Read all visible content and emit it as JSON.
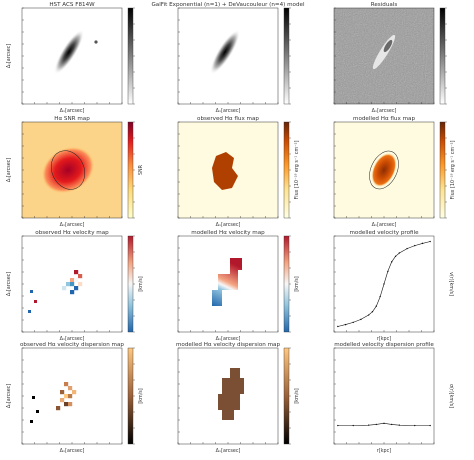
{
  "figure": {
    "panels": [
      {
        "id": "hst",
        "title": "HST ACS F814W",
        "xlabel": "Δₓ[arcsec]",
        "ylabel": "Δᵧ[arcsec]",
        "cbar_label": "",
        "cmap": "gray_r"
      },
      {
        "id": "galfit",
        "title": "GalFit Exponential (n=1) + DeVaucouleur (n=4) model",
        "xlabel": "Δₓ[arcsec]",
        "ylabel": "",
        "cbar_label": "",
        "cmap": "gray_r"
      },
      {
        "id": "residuals",
        "title": "Residuals",
        "xlabel": "Δₓ[arcsec]",
        "ylabel": "",
        "cbar_label": "",
        "cmap": "gray_r"
      },
      {
        "id": "snr",
        "title": "Hα SNR map",
        "xlabel": "Δₓ[arcsec]",
        "ylabel": "Δᵧ[arcsec]",
        "cbar_label": "SNR",
        "cmap": "YlOrRd"
      },
      {
        "id": "obs_flux",
        "title": "observed Hα flux map",
        "xlabel": "Δₓ[arcsec]",
        "ylabel": "",
        "cbar_label": "Flux [10⁻¹⁸ erg s⁻¹ cm⁻²]",
        "cmap": "YlOrBr"
      },
      {
        "id": "mod_flux",
        "title": "modelled Hα flux map",
        "xlabel": "Δₓ[arcsec]",
        "ylabel": "",
        "cbar_label": "Flux [10⁻¹⁸ erg s⁻¹ cm⁻²]",
        "cmap": "YlOrBr"
      },
      {
        "id": "obs_vel",
        "title": "observed Hα velocity map",
        "xlabel": "Δₓ[arcsec]",
        "ylabel": "Δᵧ[arcsec]",
        "cbar_label": "[km/s]",
        "cmap": "RdBu"
      },
      {
        "id": "mod_vel",
        "title": "modelled Hα velocity map",
        "xlabel": "Δₓ[arcsec]",
        "ylabel": "",
        "cbar_label": "[km/s]",
        "cmap": "RdBu"
      },
      {
        "id": "vel_profile",
        "title": "modelled velocity profile",
        "xlabel": "r[kpc]",
        "ylabel": "v(r)[km/s]",
        "cbar_label": "",
        "cmap": ""
      },
      {
        "id": "obs_disp",
        "title": "observed Hα velocity dispersion map",
        "xlabel": "Δₓ[arcsec]",
        "ylabel": "Δᵧ[arcsec]",
        "cbar_label": "[km/s]",
        "cmap": "copper"
      },
      {
        "id": "mod_disp",
        "title": "modelled Hα velocity dispersion map",
        "xlabel": "Δₓ[arcsec]",
        "ylabel": "",
        "cbar_label": "[km/s]",
        "cmap": "copper"
      },
      {
        "id": "disp_profile",
        "title": "modelled velocity dispersion profile",
        "xlabel": "r[kpc]",
        "ylabel": "σ(r)[km/s]",
        "cbar_label": "",
        "cmap": ""
      }
    ],
    "colors": {
      "gray_r": [
        "#ffffff",
        "#000000"
      ],
      "YlOrRd": [
        "#ffffcc",
        "#fed976",
        "#fd8d3c",
        "#e31a1c",
        "#800026"
      ],
      "YlOrBr": [
        "#ffffe5",
        "#fee391",
        "#fe9929",
        "#cc4c02",
        "#662506"
      ],
      "RdBu": [
        "#2166ac",
        "#92c5de",
        "#f7f7f7",
        "#f4a582",
        "#b2182b"
      ],
      "copper": [
        "#000000",
        "#6b4228",
        "#c87f4f",
        "#ffc77f"
      ]
    }
  },
  "chart_data": [
    {
      "type": "line",
      "title": "modelled velocity profile",
      "xlabel": "r[kpc]",
      "ylabel": "v(r)[km/s]",
      "x": [
        -12,
        -10,
        -8,
        -6,
        -4,
        -3,
        -2,
        -1,
        0,
        1,
        2,
        3,
        4,
        6,
        8,
        10,
        12
      ],
      "y": [
        -115,
        -110,
        -104,
        -96,
        -84,
        -75,
        -60,
        -34,
        0,
        34,
        60,
        75,
        84,
        96,
        104,
        110,
        115
      ],
      "grid": false,
      "legend": "none"
    },
    {
      "type": "line",
      "title": "modelled velocity dispersion profile",
      "xlabel": "r[kpc]",
      "ylabel": "σ(r)[km/s]",
      "x": [
        -12,
        -8,
        -4,
        -2,
        0,
        2,
        4,
        8,
        12
      ],
      "y": [
        50,
        50,
        51,
        53,
        56,
        53,
        51,
        50,
        50
      ],
      "grid": false,
      "legend": "none"
    }
  ]
}
